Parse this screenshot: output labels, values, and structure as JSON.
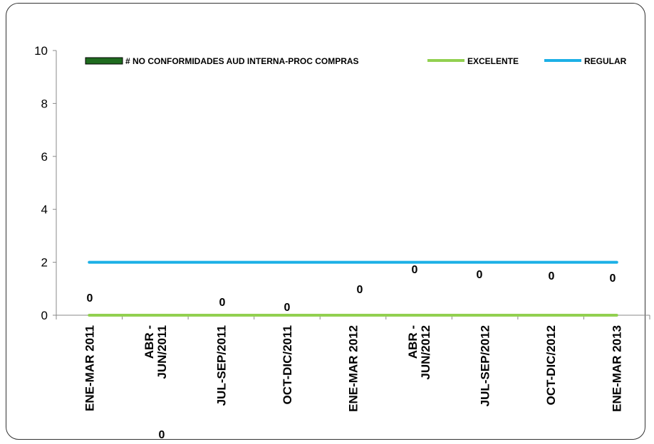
{
  "chart_data": {
    "type": "line",
    "title": "",
    "xlabel": "",
    "ylabel": "",
    "ylim": [
      0,
      10
    ],
    "yticks": [
      "0",
      "2",
      "4",
      "6",
      "8",
      "10"
    ],
    "categories": [
      [
        "ENE-MAR 2011"
      ],
      [
        "ABR -",
        "JUN/2011"
      ],
      [
        "JUL-SEP/2011"
      ],
      [
        "OCT-DIC/2011"
      ],
      [
        "ENE-MAR 2012"
      ],
      [
        "ABR -",
        "JUN/2012"
      ],
      [
        "JUL-SEP/2012"
      ],
      [
        "OCT-DIC/2012"
      ],
      [
        "ENE-MAR 2013"
      ]
    ],
    "series": [
      {
        "name": "# NO CONFORMIDADES AUD INTERNA-PROC COMPRAS",
        "type": "bar",
        "color": "#1f6b1f",
        "values": [
          0,
          0,
          0,
          0,
          0,
          0,
          0,
          0,
          0
        ],
        "labels": [
          "0",
          "0",
          "0",
          "0",
          "0",
          "0",
          "0",
          "0",
          "0"
        ]
      },
      {
        "name": "EXCELENTE",
        "type": "line",
        "color": "#92d050",
        "values": [
          0,
          0,
          0,
          0,
          0,
          0,
          0,
          0,
          0
        ]
      },
      {
        "name": "REGULAR",
        "type": "line",
        "color": "#1cb0e6",
        "values": [
          2,
          2,
          2,
          2,
          2,
          2,
          2,
          2,
          2
        ]
      }
    ],
    "grid": false,
    "legend_position": "top"
  }
}
